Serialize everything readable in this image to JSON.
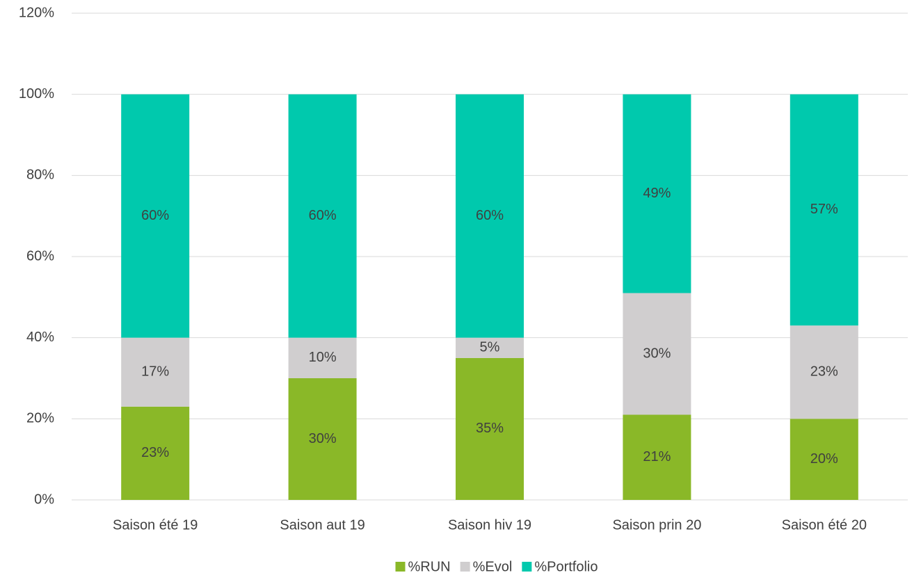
{
  "chart_data": {
    "type": "stacked_bar",
    "categories": [
      "Saison été 19",
      "Saison aut 19",
      "Saison hiv 19",
      "Saison prin 20",
      "Saison été 20"
    ],
    "series": [
      {
        "name": "%RUN",
        "color": "#8ab828",
        "values": [
          23,
          30,
          35,
          21,
          20
        ],
        "value_labels": [
          "23%",
          "30%",
          "35%",
          "21%",
          "20%"
        ]
      },
      {
        "name": "%Evol",
        "color": "#d0cecf",
        "values": [
          17,
          10,
          5,
          30,
          23
        ],
        "value_labels": [
          "17%",
          "10%",
          "5%",
          "30%",
          "23%"
        ]
      },
      {
        "name": "%Portfolio",
        "color": "#00c9ad",
        "values": [
          60,
          60,
          60,
          49,
          57
        ],
        "value_labels": [
          "60%",
          "60%",
          "60%",
          "49%",
          "57%"
        ]
      }
    ],
    "ylim": [
      0,
      120
    ],
    "yticks": [
      {
        "value": 0,
        "label": "0%"
      },
      {
        "value": 20,
        "label": "20%"
      },
      {
        "value": 40,
        "label": "40%"
      },
      {
        "value": 60,
        "label": "60%"
      },
      {
        "value": 80,
        "label": "80%"
      },
      {
        "value": 100,
        "label": "100%"
      },
      {
        "value": 120,
        "label": "120%"
      }
    ],
    "grid": true,
    "legend": "bottom"
  }
}
